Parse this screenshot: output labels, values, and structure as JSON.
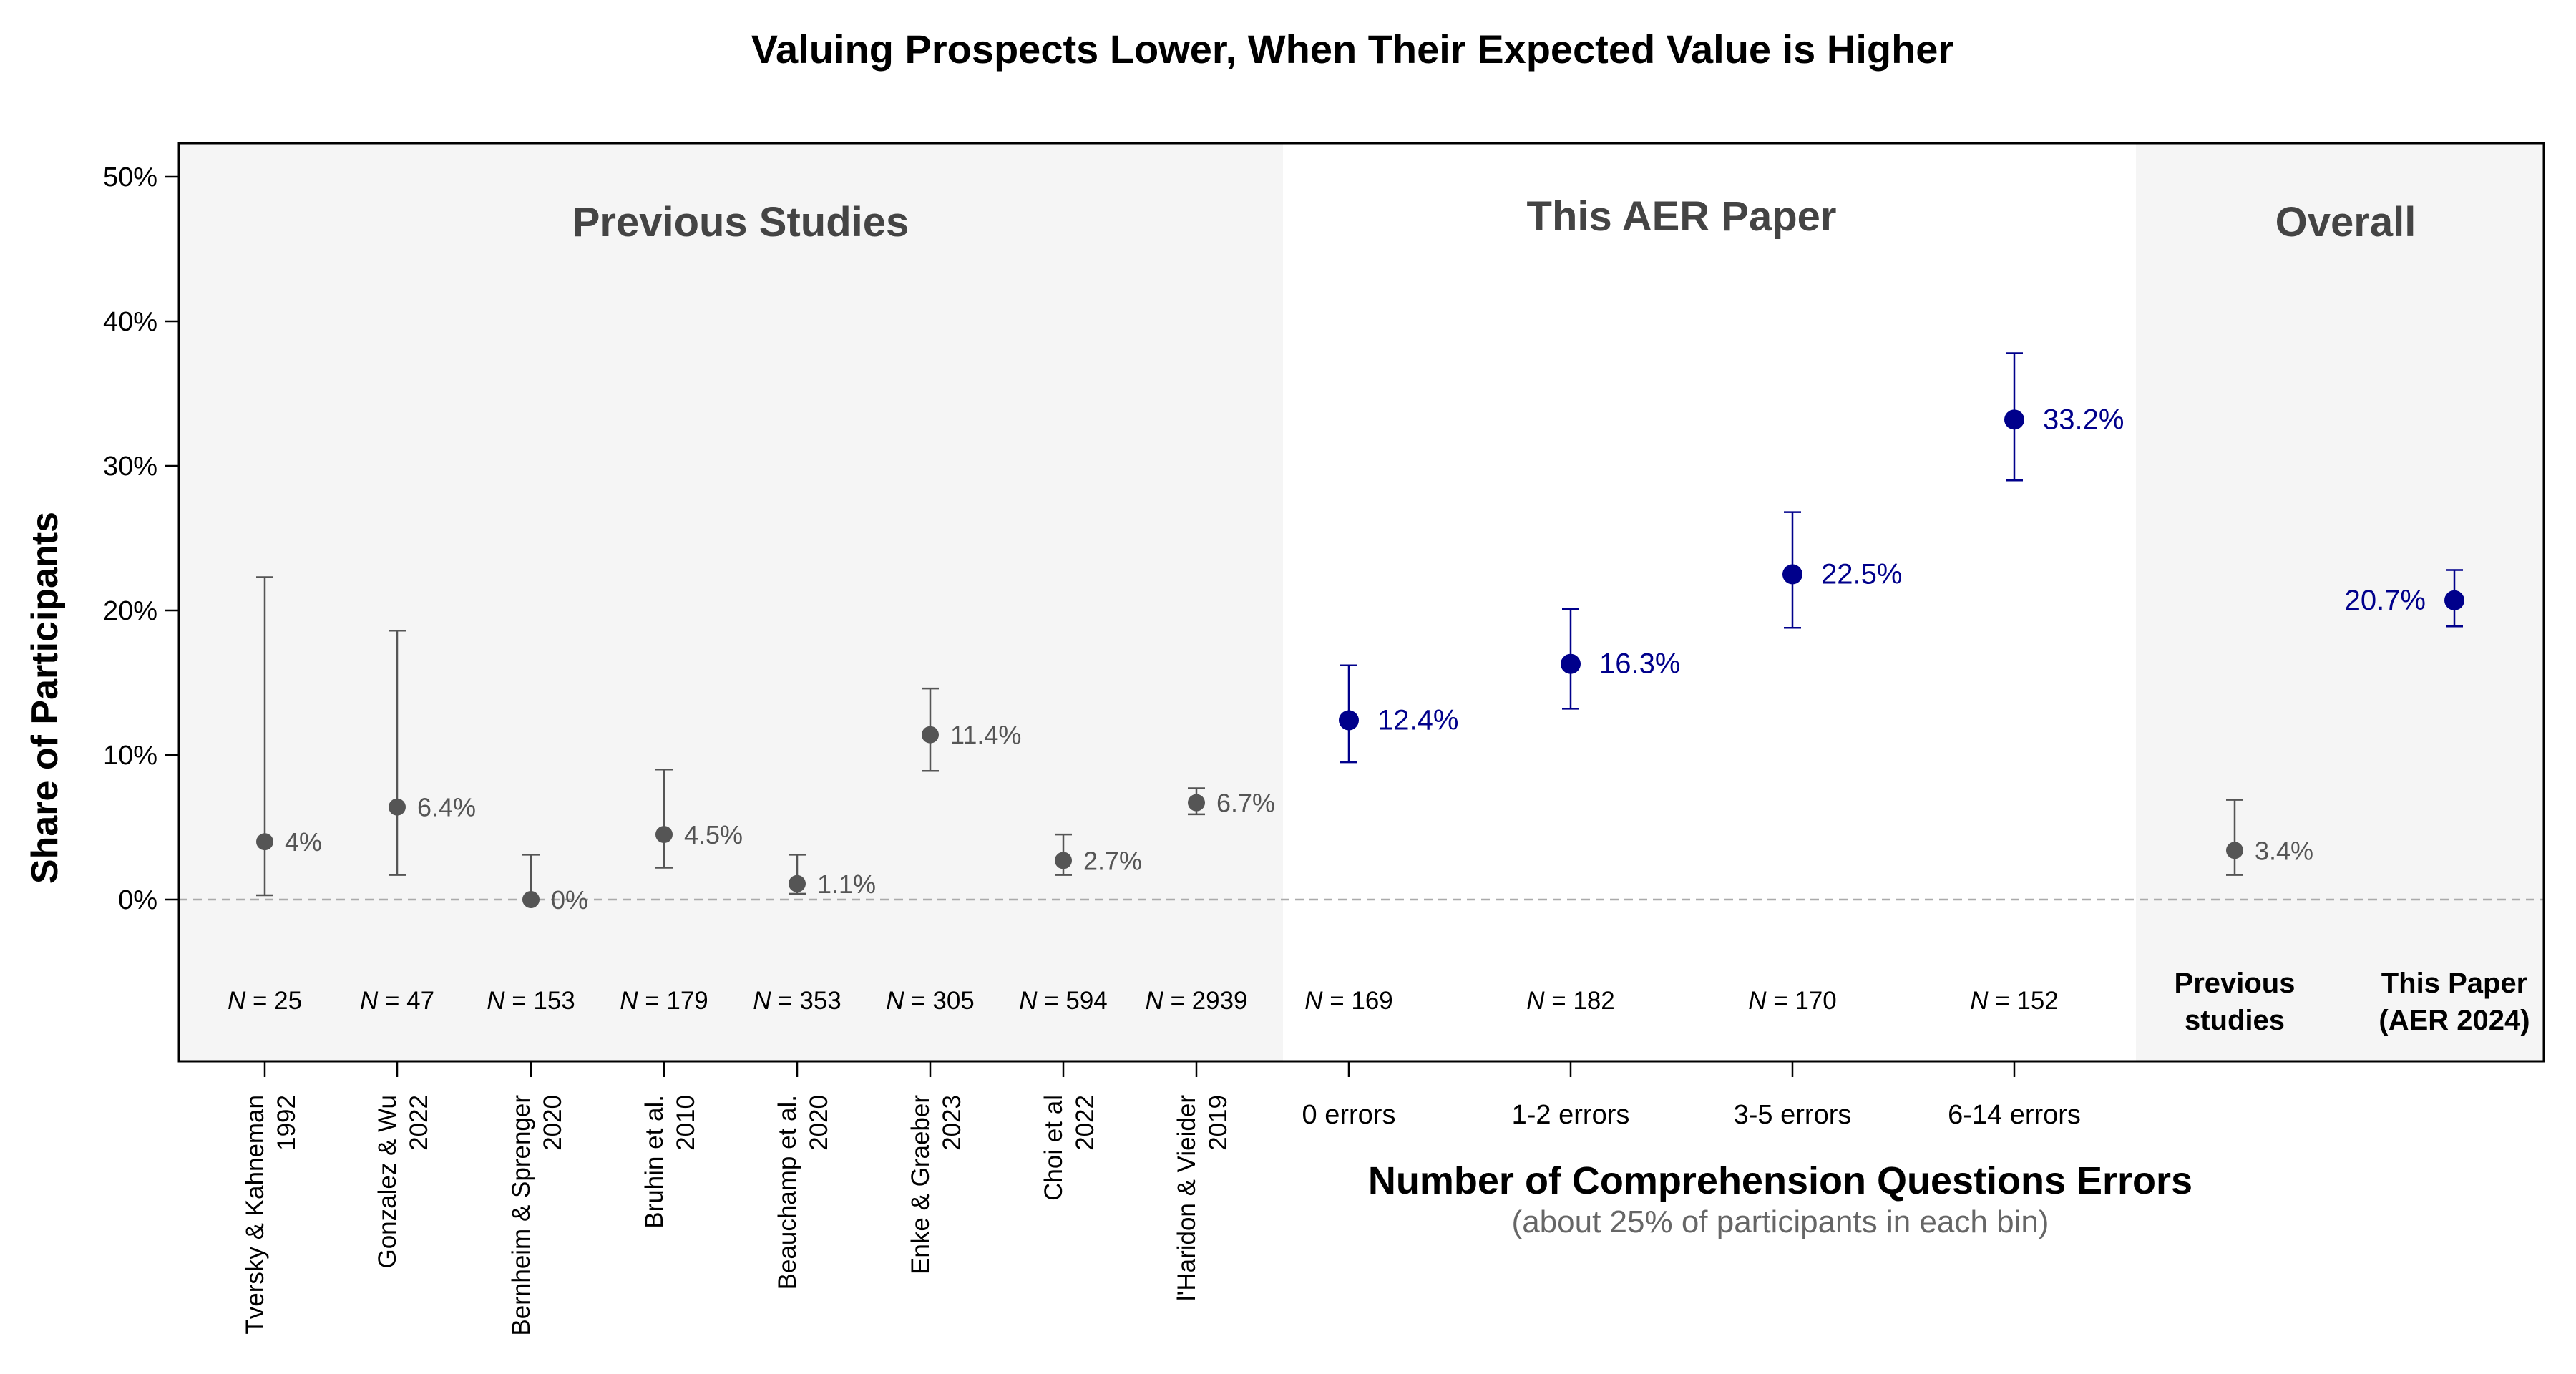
{
  "chart_data": {
    "type": "scatter",
    "title": "Valuing Prospects Lower, When Their Expected Value is Higher",
    "ylabel": "Share of Participants",
    "xlabel": "Number of Comprehension Questions Errors",
    "xlabel_sub": "(about 25% of participants in each bin)",
    "ylim": [
      -11,
      52
    ],
    "yticks": [
      0,
      10,
      20,
      30,
      40,
      50
    ],
    "ytick_labels": [
      "0%",
      "10%",
      "20%",
      "30%",
      "40%",
      "50%"
    ],
    "reference_line": 0,
    "grid": false,
    "colors": {
      "previous": "#555555",
      "aer": "#00008B",
      "panel_bg": "#f5f5f5"
    },
    "panels": [
      {
        "title": "Previous Studies",
        "shaded": true
      },
      {
        "title": "This AER Paper",
        "shaded": false
      },
      {
        "title": "Overall",
        "shaded": true
      }
    ],
    "points": [
      {
        "group": "previous",
        "name_lines": [
          "Tversky & Kahneman",
          "1992"
        ],
        "value": 4,
        "value_label": "4%",
        "ci": [
          0.3,
          22.3
        ],
        "n": "25"
      },
      {
        "group": "previous",
        "name_lines": [
          "Gonzalez & Wu",
          "2022"
        ],
        "value": 6.4,
        "value_label": "6.4%",
        "ci": [
          1.7,
          18.6
        ],
        "n": "47"
      },
      {
        "group": "previous",
        "name_lines": [
          "Bernheim & Sprenger",
          "2020"
        ],
        "value": 0,
        "value_label": "0%",
        "ci": [
          0,
          3.1
        ],
        "n": "153"
      },
      {
        "group": "previous",
        "name_lines": [
          "Bruhin et al.",
          "2010"
        ],
        "value": 4.5,
        "value_label": "4.5%",
        "ci": [
          2.2,
          9.0
        ],
        "n": "179"
      },
      {
        "group": "previous",
        "name_lines": [
          "Beauchamp et al.",
          "2020"
        ],
        "value": 1.1,
        "value_label": "1.1%",
        "ci": [
          0.4,
          3.1
        ],
        "n": "353"
      },
      {
        "group": "previous",
        "name_lines": [
          "Enke & Graeber",
          "2023"
        ],
        "value": 11.4,
        "value_label": "11.4%",
        "ci": [
          8.9,
          14.6
        ],
        "n": "305"
      },
      {
        "group": "previous",
        "name_lines": [
          "Choi et al",
          "2022"
        ],
        "value": 2.7,
        "value_label": "2.7%",
        "ci": [
          1.7,
          4.5
        ],
        "n": "594"
      },
      {
        "group": "previous",
        "name_lines": [
          "l'Haridon & Vieider",
          "2019"
        ],
        "value": 6.7,
        "value_label": "6.7%",
        "ci": [
          5.9,
          7.7
        ],
        "n": "2939"
      },
      {
        "group": "aer",
        "bin_label": "0 errors",
        "value": 12.4,
        "value_label": "12.4%",
        "ci": [
          9.5,
          16.2
        ],
        "n": "169"
      },
      {
        "group": "aer",
        "bin_label": "1-2 errors",
        "value": 16.3,
        "value_label": "16.3%",
        "ci": [
          13.2,
          20.1
        ],
        "n": "182"
      },
      {
        "group": "aer",
        "bin_label": "3-5 errors",
        "value": 22.5,
        "value_label": "22.5%",
        "ci": [
          18.8,
          26.8
        ],
        "n": "170"
      },
      {
        "group": "aer",
        "bin_label": "6-14 errors",
        "value": 33.2,
        "value_label": "33.2%",
        "ci": [
          29.0,
          37.8
        ],
        "n": "152"
      },
      {
        "group": "overall-previous",
        "label_lines": [
          "Previous",
          "studies"
        ],
        "value": 3.4,
        "value_label": "3.4%",
        "ci": [
          1.7,
          6.9
        ]
      },
      {
        "group": "overall-aer",
        "label_lines": [
          "This Paper",
          "(AER 2024)"
        ],
        "value": 20.7,
        "value_label": "20.7%",
        "ci": [
          18.9,
          22.8
        ]
      }
    ]
  }
}
